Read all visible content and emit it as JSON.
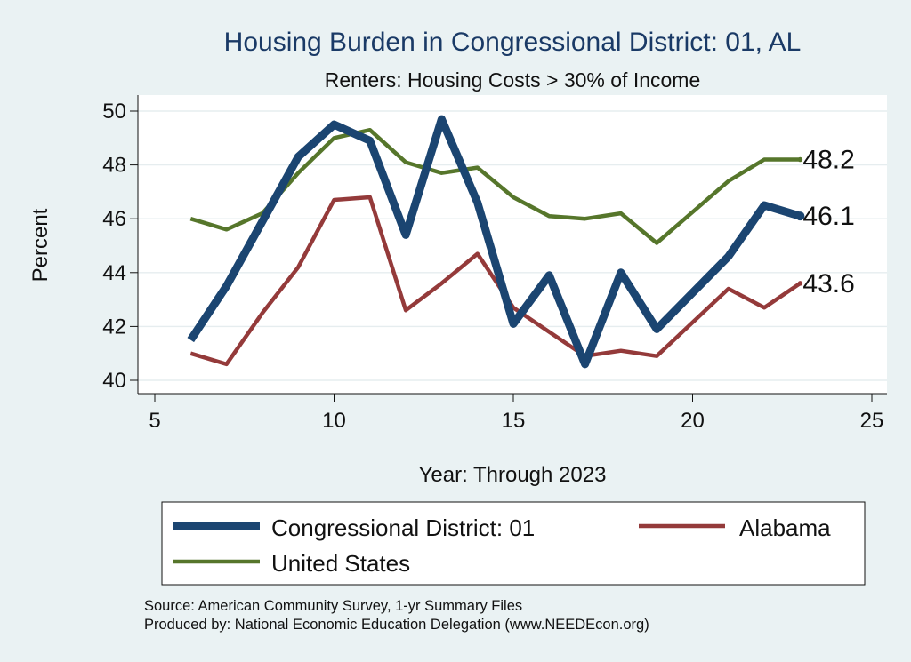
{
  "chart_data": {
    "type": "line",
    "title": "Housing Burden in Congressional District:  01, AL",
    "subtitle": "Renters: Housing Costs > 30% of Income",
    "xlabel": "Year: Through 2023",
    "ylabel": "Percent",
    "xlim": [
      5,
      25
    ],
    "ylim": [
      40,
      50
    ],
    "x_ticks": [
      "5",
      "10",
      "15",
      "20",
      "25"
    ],
    "y_ticks": [
      "40",
      "42",
      "44",
      "46",
      "48",
      "50"
    ],
    "grid": true,
    "legend_position": "bottom",
    "x": [
      6,
      7,
      8,
      9,
      10,
      11,
      12,
      13,
      14,
      15,
      16,
      17,
      18,
      19,
      21,
      22,
      23
    ],
    "series": [
      {
        "name": "Congressional District:  01",
        "color": "#1b4571",
        "values": [
          41.5,
          43.5,
          45.9,
          48.3,
          49.5,
          48.9,
          45.4,
          49.7,
          46.6,
          42.1,
          43.9,
          40.6,
          44.0,
          41.9,
          44.6,
          46.5,
          46.1
        ],
        "end_label": "46.1"
      },
      {
        "name": "Alabama",
        "color": "#943a3a",
        "values": [
          41.0,
          40.6,
          42.5,
          44.2,
          46.7,
          46.8,
          42.6,
          43.6,
          44.7,
          42.7,
          41.8,
          40.9,
          41.1,
          40.9,
          43.4,
          42.7,
          43.6
        ],
        "end_label": "43.6"
      },
      {
        "name": "United States",
        "color": "#56762b",
        "values": [
          46.0,
          45.6,
          46.2,
          47.7,
          49.0,
          49.3,
          48.1,
          47.7,
          47.9,
          46.8,
          46.1,
          46.0,
          46.2,
          45.1,
          47.4,
          48.2,
          48.2
        ],
        "end_label": "48.2"
      }
    ]
  },
  "source_lines": [
    "Source: American Community Survey, 1-yr Summary Files",
    "Produced by: National Economic Education Delegation (www.NEEDEcon.org)"
  ]
}
